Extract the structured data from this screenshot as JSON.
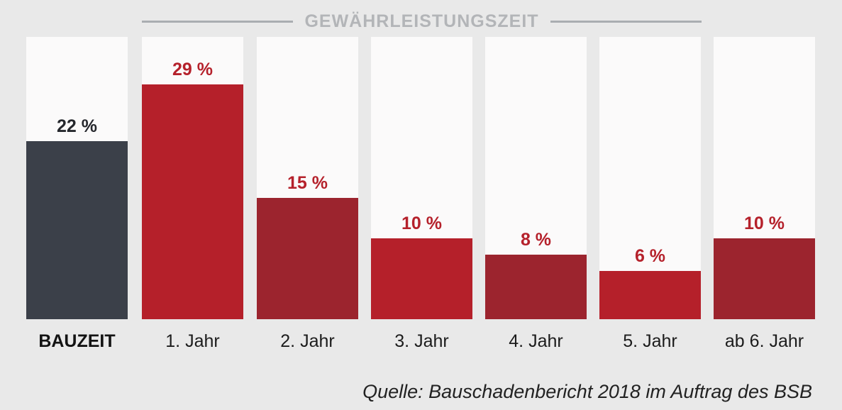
{
  "title": "GEWÄHRLEISTUNGSZEIT",
  "source": "Quelle: Bauschadenbericht 2018 im Auftrag des BSB",
  "colors": {
    "page_bg": "#e9e9e9",
    "panel_bg": "#fbfafa",
    "title_gray": "#b3b5b8",
    "rule_gray": "#aaadb1",
    "bauzeit_bar": "#3b4049",
    "red_bright": "#b5202a",
    "red_dark": "#9c242e",
    "value_label_red": "#b5212b",
    "value_label_dark": "#25272c",
    "axis_label": "#1c1c1c"
  },
  "chart_data": {
    "type": "bar",
    "title": "GEWÄHRLEISTUNGSZEIT",
    "title_spans_categories": [
      "1. Jahr",
      "5. Jahr"
    ],
    "categories": [
      "BAUZEIT",
      "1. Jahr",
      "2. Jahr",
      "3. Jahr",
      "4. Jahr",
      "5. Jahr",
      "ab 6. Jahr"
    ],
    "values": [
      22,
      29,
      15,
      10,
      8,
      6,
      10
    ],
    "value_labels": [
      "22 %",
      "29 %",
      "15 %",
      "10 %",
      "8 %",
      "6 %",
      "10 %"
    ],
    "unit": "%",
    "bar_colors": [
      "#3b4049",
      "#b5202a",
      "#9c242e",
      "#b5202a",
      "#9c242e",
      "#b5202a",
      "#9c242e"
    ],
    "value_label_colors": [
      "#25272c",
      "#b5212b",
      "#b5212b",
      "#b5212b",
      "#b5212b",
      "#b5212b",
      "#b5212b"
    ],
    "xlabel": "",
    "ylabel": "",
    "ylim": [
      0,
      35
    ],
    "grid": false,
    "legend": false,
    "annotation": "Quelle: Bauschadenbericht 2018 im Auftrag des BSB"
  }
}
